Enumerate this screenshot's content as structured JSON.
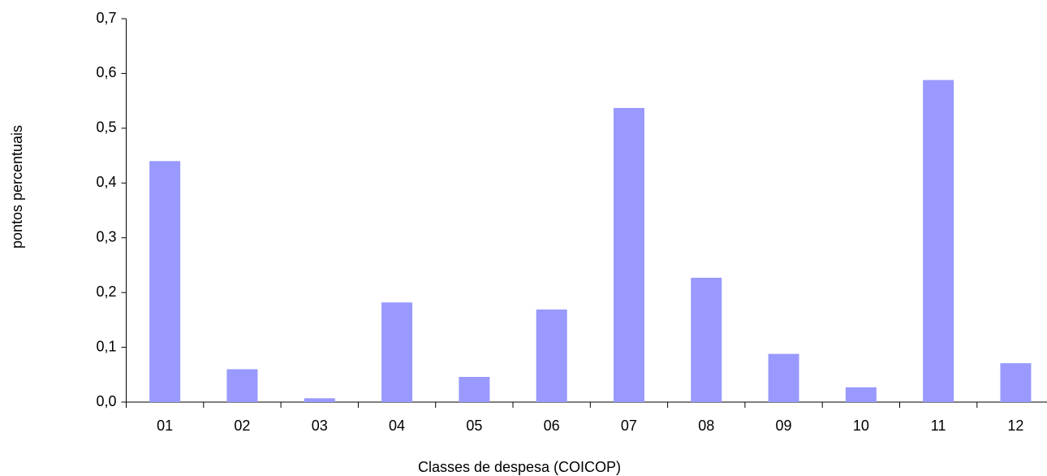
{
  "chart_data": {
    "type": "bar",
    "x_label": "Classes de despesa (COICOP)",
    "y_label": "pontos percentuais",
    "categories": [
      "01",
      "02",
      "03",
      "04",
      "05",
      "06",
      "07",
      "08",
      "09",
      "10",
      "11",
      "12"
    ],
    "values": [
      0.44,
      0.06,
      0.007,
      0.182,
      0.046,
      0.169,
      0.537,
      0.227,
      0.088,
      0.027,
      0.588,
      0.071
    ],
    "color": "#9999ff",
    "ylim": [
      0,
      0.7
    ],
    "yticks": [
      {
        "value": 0,
        "label": "0,0"
      },
      {
        "value": 0.1,
        "label": "0,1"
      },
      {
        "value": 0.2,
        "label": "0,2"
      },
      {
        "value": 0.3,
        "label": "0,3"
      },
      {
        "value": 0.4,
        "label": "0,4"
      },
      {
        "value": 0.5,
        "label": "0,5"
      },
      {
        "value": 0.6,
        "label": "0,6"
      },
      {
        "value": 0.7,
        "label": "0,7"
      }
    ],
    "grid": false
  }
}
